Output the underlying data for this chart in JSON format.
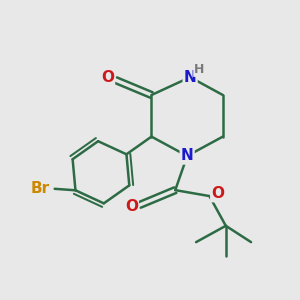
{
  "bg_color": "#e8e8e8",
  "bond_color": "#2d6b45",
  "bond_width": 1.8,
  "atom_colors": {
    "N": "#1a1acc",
    "O": "#cc1a1a",
    "Br": "#cc8800",
    "H": "#7a7a7a"
  },
  "font_size_atom": 11,
  "font_size_h": 9
}
